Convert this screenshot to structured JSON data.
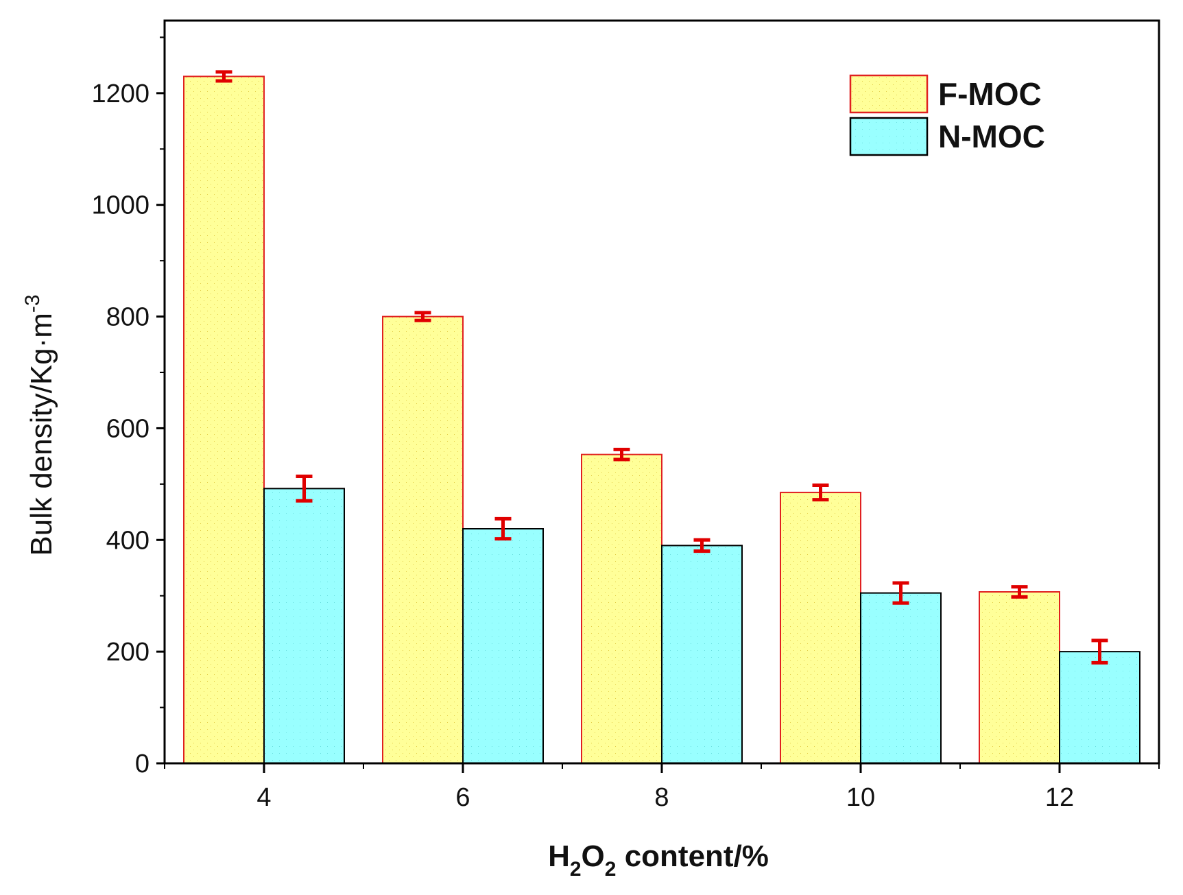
{
  "chart_data": {
    "type": "bar",
    "categories": [
      "4",
      "6",
      "8",
      "10",
      "12"
    ],
    "series": [
      {
        "name": "F-MOC",
        "fill": "#ffff99",
        "stroke": "#e02020",
        "values": [
          1230,
          800,
          553,
          485,
          307
        ],
        "errors": [
          8,
          7,
          9,
          13,
          9
        ]
      },
      {
        "name": "N-MOC",
        "fill": "#99ffff",
        "stroke": "#000000",
        "values": [
          492,
          420,
          390,
          305,
          200
        ],
        "errors": [
          22,
          18,
          10,
          18,
          20
        ]
      }
    ],
    "error_bar_color": "#e00000",
    "ylim": [
      0,
      1330
    ],
    "yticks": [
      "0",
      "200",
      "400",
      "600",
      "800",
      "1000",
      "1200"
    ],
    "xlabel": {
      "h": "H",
      "sub1": "2",
      "o": "O",
      "sub2": "2",
      "rest": " content/%"
    },
    "ylabel": {
      "main": "Bulk density/Kg·m",
      "sup": "-3"
    },
    "legend_position": "top-right",
    "grid": false
  }
}
